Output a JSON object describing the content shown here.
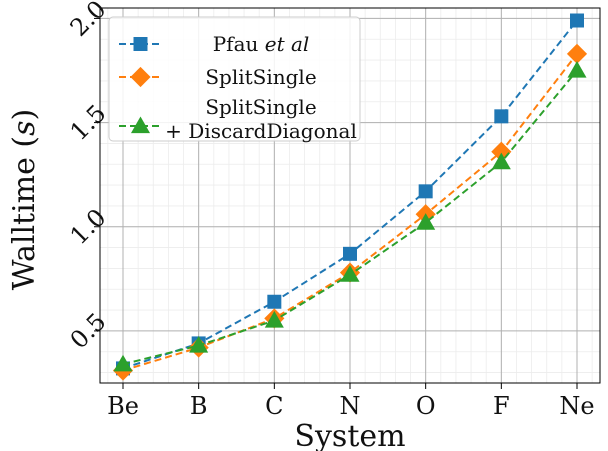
{
  "chart_data": {
    "type": "line",
    "xlabel": "System",
    "ylabel": "Walltime (s)",
    "ylim": [
      0.25,
      2.05
    ],
    "yticks": [
      0.5,
      1.0,
      1.5,
      2.0
    ],
    "ytick_labels": [
      "0.5",
      "1.0",
      "1.5",
      "2.0"
    ],
    "categories": [
      "Be",
      "B",
      "C",
      "N",
      "O",
      "F",
      "Ne"
    ],
    "grid": true,
    "legend_position": "top-left",
    "series": [
      {
        "name": "Pfau et al",
        "color": "#1f77b4",
        "marker": "square",
        "values": [
          0.32,
          0.44,
          0.64,
          0.87,
          1.17,
          1.53,
          1.99
        ]
      },
      {
        "name": "SplitSingle",
        "color": "#ff7f0e",
        "marker": "diamond",
        "values": [
          0.31,
          0.42,
          0.56,
          0.78,
          1.06,
          1.36,
          1.83
        ]
      },
      {
        "name": "SplitSingle\n+ DiscardDiagonal",
        "color": "#2ca02c",
        "marker": "triangle",
        "values": [
          0.34,
          0.43,
          0.55,
          0.77,
          1.02,
          1.31,
          1.75
        ]
      }
    ]
  }
}
